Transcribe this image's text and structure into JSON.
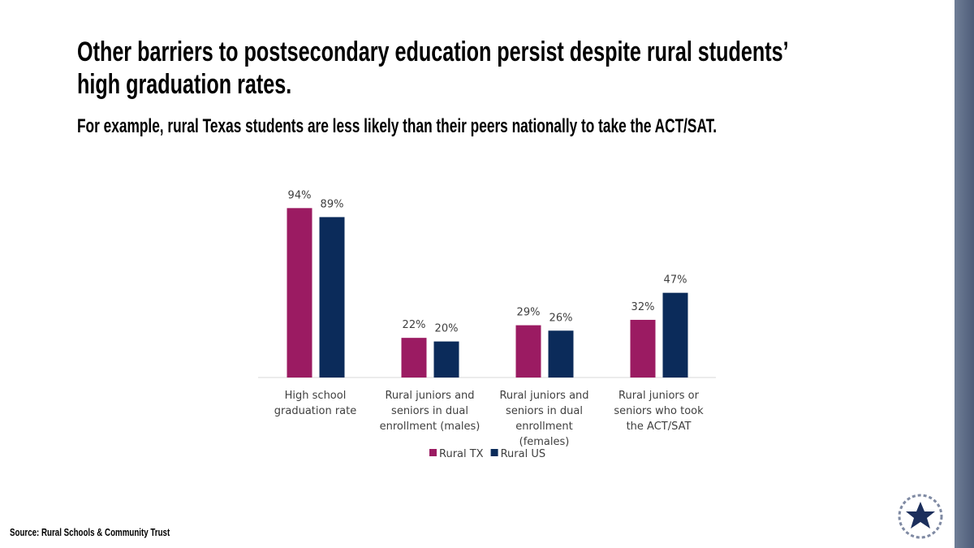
{
  "title": "Other barriers to postsecondary education persist despite rural students’ high graduation rates.",
  "subtitle": "For example, rural Texas students are less likely than their peers nationally to take the ACT/SAT.",
  "source": "Source: Rural Schools & Community Trust",
  "chart_data": {
    "type": "bar",
    "categories": [
      "High school graduation rate",
      "Rural juniors and seniors in dual enrollment (males)",
      "Rural juniors and seniors in dual enrollment (females)",
      "Rural juniors or seniors who took the ACT/SAT"
    ],
    "series": [
      {
        "name": "Rural TX",
        "color": "#9b1b62",
        "values": [
          94,
          22,
          29,
          32
        ],
        "value_labels": [
          "94%",
          "22%",
          "29%",
          "32%"
        ]
      },
      {
        "name": "Rural US",
        "color": "#0b2b5a",
        "values": [
          89,
          20,
          26,
          47
        ],
        "value_labels": [
          "89%",
          "20%",
          "26%",
          "47%"
        ]
      }
    ],
    "legend": "bottom"
  }
}
